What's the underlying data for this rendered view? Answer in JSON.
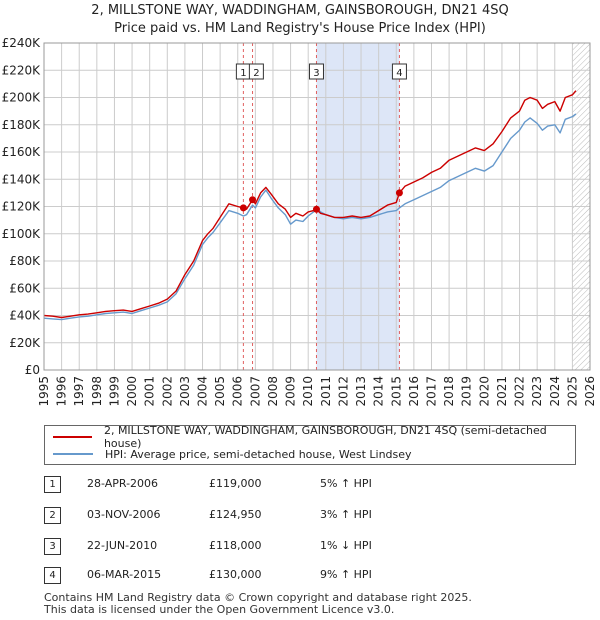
{
  "title_line1": "2, MILLSTONE WAY, WADDINGHAM, GAINSBOROUGH, DN21 4SQ",
  "title_line2": "Price paid vs. HM Land Registry's House Price Index (HPI)",
  "colors": {
    "property": "#cc0000",
    "hpi": "#6699cc",
    "shade": "#dde6f7",
    "vline": "#e06060",
    "grid": "#cccccc"
  },
  "chart_data": {
    "type": "line",
    "title": "Price paid vs. HM Land Registry's House Price Index (HPI)",
    "xlabel": "",
    "ylabel": "",
    "xlim": [
      1995,
      2026
    ],
    "ylim": [
      0,
      240000
    ],
    "x_ticks": [
      "1995",
      "1996",
      "1997",
      "1998",
      "1999",
      "2000",
      "2001",
      "2002",
      "2003",
      "2004",
      "2005",
      "2006",
      "2007",
      "2008",
      "2009",
      "2010",
      "2011",
      "2012",
      "2013",
      "2014",
      "2015",
      "2016",
      "2017",
      "2018",
      "2019",
      "2020",
      "2021",
      "2022",
      "2023",
      "2024",
      "2025",
      "2026"
    ],
    "y_ticks": [
      {
        "value": 0,
        "label": "£0"
      },
      {
        "value": 20000,
        "label": "£20K"
      },
      {
        "value": 40000,
        "label": "£40K"
      },
      {
        "value": 60000,
        "label": "£60K"
      },
      {
        "value": 80000,
        "label": "£80K"
      },
      {
        "value": 100000,
        "label": "£100K"
      },
      {
        "value": 120000,
        "label": "£120K"
      },
      {
        "value": 140000,
        "label": "£140K"
      },
      {
        "value": 160000,
        "label": "£160K"
      },
      {
        "value": 180000,
        "label": "£180K"
      },
      {
        "value": 200000,
        "label": "£200K"
      },
      {
        "value": 220000,
        "label": "£220K"
      },
      {
        "value": 240000,
        "label": "£240K"
      }
    ],
    "shaded_ranges": [
      [
        2010.47,
        2015.18
      ]
    ],
    "future_hatch_from": 2025.0,
    "series": [
      {
        "name": "2, MILLSTONE WAY, WADDINGHAM, GAINSBOROUGH, DN21 4SQ (semi-detached house)",
        "x": [
          1995.0,
          1995.5,
          1996.0,
          1996.5,
          1997.0,
          1997.5,
          1998.0,
          1998.5,
          1999.0,
          1999.5,
          2000.0,
          2000.5,
          2001.0,
          2001.5,
          2002.0,
          2002.5,
          2003.0,
          2003.5,
          2004.0,
          2004.3,
          2004.6,
          2005.0,
          2005.5,
          2006.0,
          2006.32,
          2006.5,
          2006.84,
          2007.0,
          2007.3,
          2007.6,
          2007.9,
          2008.3,
          2008.7,
          2009.0,
          2009.3,
          2009.7,
          2010.0,
          2010.3,
          2010.47,
          2010.7,
          2011.0,
          2011.5,
          2012.0,
          2012.5,
          2013.0,
          2013.5,
          2014.0,
          2014.5,
          2015.0,
          2015.18,
          2015.5,
          2016.0,
          2016.5,
          2017.0,
          2017.5,
          2018.0,
          2018.5,
          2019.0,
          2019.5,
          2020.0,
          2020.5,
          2021.0,
          2021.5,
          2022.0,
          2022.3,
          2022.6,
          2023.0,
          2023.3,
          2023.6,
          2024.0,
          2024.3,
          2024.6,
          2025.0,
          2025.2
        ],
        "y": [
          40000,
          39500,
          38500,
          39500,
          40500,
          41000,
          42000,
          43000,
          43500,
          44000,
          43000,
          45000,
          47000,
          49000,
          52000,
          58000,
          70000,
          80000,
          95000,
          100000,
          104000,
          112000,
          122000,
          120000,
          119000,
          118000,
          124950,
          122000,
          130000,
          134000,
          129000,
          122000,
          118000,
          112000,
          115000,
          113000,
          116000,
          117000,
          118000,
          115000,
          114000,
          112000,
          112000,
          113000,
          112000,
          113000,
          117000,
          121000,
          123000,
          130000,
          135000,
          138000,
          141000,
          145000,
          148000,
          154000,
          157000,
          160000,
          163000,
          161000,
          166000,
          175000,
          185000,
          190000,
          198000,
          200000,
          198000,
          192000,
          195000,
          197000,
          190000,
          200000,
          202000,
          205000
        ]
      },
      {
        "name": "HPI: Average price, semi-detached house, West Lindsey",
        "x": [
          1995.0,
          1995.5,
          1996.0,
          1996.5,
          1997.0,
          1997.5,
          1998.0,
          1998.5,
          1999.0,
          1999.5,
          2000.0,
          2000.5,
          2001.0,
          2001.5,
          2002.0,
          2002.5,
          2003.0,
          2003.5,
          2004.0,
          2004.3,
          2004.6,
          2005.0,
          2005.5,
          2006.0,
          2006.32,
          2006.5,
          2006.84,
          2007.0,
          2007.3,
          2007.6,
          2007.9,
          2008.3,
          2008.7,
          2009.0,
          2009.3,
          2009.7,
          2010.0,
          2010.3,
          2010.47,
          2010.7,
          2011.0,
          2011.5,
          2012.0,
          2012.5,
          2013.0,
          2013.5,
          2014.0,
          2014.5,
          2015.0,
          2015.18,
          2015.5,
          2016.0,
          2016.5,
          2017.0,
          2017.5,
          2018.0,
          2018.5,
          2019.0,
          2019.5,
          2020.0,
          2020.5,
          2021.0,
          2021.5,
          2022.0,
          2022.3,
          2022.6,
          2023.0,
          2023.3,
          2023.6,
          2024.0,
          2024.3,
          2024.6,
          2025.0,
          2025.2
        ],
        "y": [
          38000,
          37500,
          37000,
          38000,
          39000,
          39500,
          40500,
          41500,
          42000,
          42500,
          41500,
          43500,
          45500,
          47500,
          50000,
          56000,
          67000,
          77000,
          92000,
          97000,
          101000,
          108000,
          117000,
          115000,
          113000,
          114000,
          121000,
          119000,
          127000,
          132000,
          126000,
          119000,
          114000,
          107000,
          110000,
          109000,
          113000,
          116000,
          119000,
          116000,
          114000,
          112000,
          111000,
          112000,
          111000,
          112000,
          114000,
          116000,
          117000,
          119000,
          122000,
          125000,
          128000,
          131000,
          134000,
          139000,
          142000,
          145000,
          148000,
          146000,
          150000,
          160000,
          170000,
          176000,
          182000,
          185000,
          181000,
          176000,
          179000,
          180000,
          174000,
          184000,
          186000,
          188000
        ]
      }
    ],
    "sales": [
      {
        "id": "1",
        "x": 2006.32,
        "y": 119000
      },
      {
        "id": "2",
        "x": 2006.84,
        "y": 124950
      },
      {
        "id": "3",
        "x": 2010.47,
        "y": 118000
      },
      {
        "id": "4",
        "x": 2015.18,
        "y": 130000
      }
    ]
  },
  "legend": {
    "property": "2, MILLSTONE WAY, WADDINGHAM, GAINSBOROUGH, DN21 4SQ (semi-detached house)",
    "hpi": "HPI: Average price, semi-detached house, West Lindsey"
  },
  "table": [
    {
      "num": "1",
      "date": "28-APR-2006",
      "price": "£119,000",
      "hpi": "5% ↑ HPI"
    },
    {
      "num": "2",
      "date": "03-NOV-2006",
      "price": "£124,950",
      "hpi": "3% ↑ HPI"
    },
    {
      "num": "3",
      "date": "22-JUN-2010",
      "price": "£118,000",
      "hpi": "1% ↓ HPI"
    },
    {
      "num": "4",
      "date": "06-MAR-2015",
      "price": "£130,000",
      "hpi": "9% ↑ HPI"
    }
  ],
  "footer_line1": "Contains HM Land Registry data © Crown copyright and database right 2025.",
  "footer_line2": "This data is licensed under the Open Government Licence v3.0."
}
